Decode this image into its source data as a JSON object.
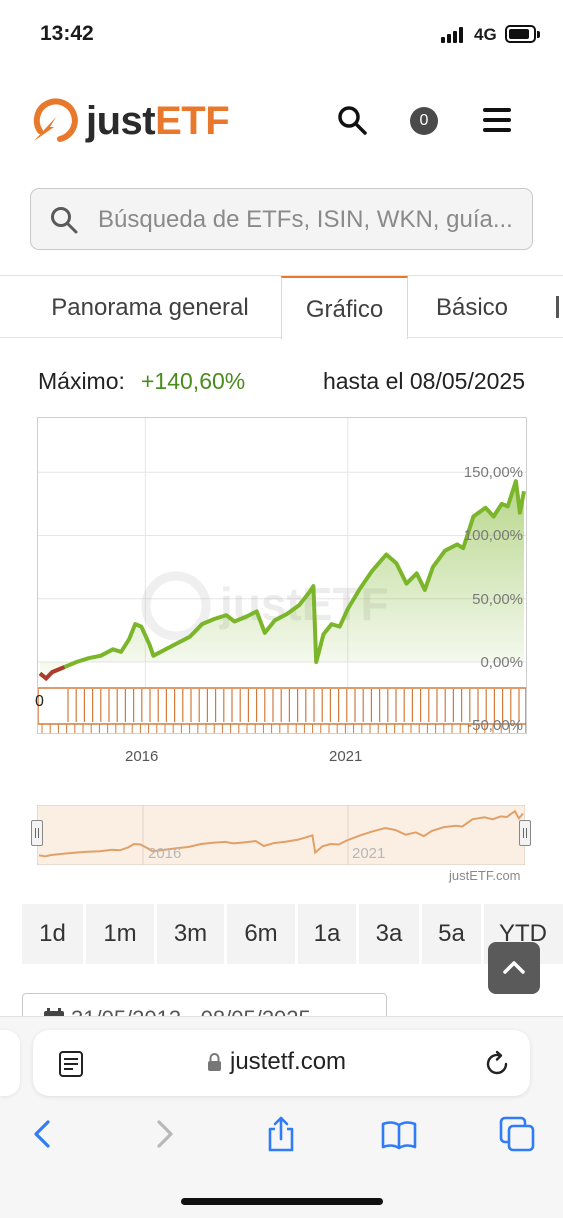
{
  "status_bar": {
    "time": "13:42",
    "network": "4G"
  },
  "header": {
    "logo_just": "just",
    "logo_etf": "ETF",
    "cart_count": "0",
    "brand_color": "#e8782b"
  },
  "search": {
    "placeholder": "Búsqueda de ETFs, ISIN, WKN, guía..."
  },
  "tabs": [
    {
      "label": "Panorama general",
      "active": false
    },
    {
      "label": "Gráfico",
      "active": true
    },
    {
      "label": "Básico",
      "active": false
    }
  ],
  "summary": {
    "max_label": "Máximo:",
    "max_value": "+140,60%",
    "until_label": "hasta el 08/05/2025",
    "positive_color": "#4a8d1f"
  },
  "chart_data": {
    "type": "line",
    "series": [
      {
        "values": [
          [
            2013.4,
            -9
          ],
          [
            2013.55,
            -13
          ],
          [
            2013.7,
            -8
          ],
          [
            2013.85,
            -6
          ],
          [
            2014.0,
            -4
          ],
          [
            2014.3,
            0
          ],
          [
            2014.6,
            3
          ],
          [
            2014.9,
            5
          ],
          [
            2015.2,
            10
          ],
          [
            2015.4,
            8
          ],
          [
            2015.6,
            18
          ],
          [
            2015.75,
            30
          ],
          [
            2015.9,
            28
          ],
          [
            2016.1,
            14
          ],
          [
            2016.2,
            5
          ],
          [
            2016.5,
            10
          ],
          [
            2016.8,
            15
          ],
          [
            2017.1,
            20
          ],
          [
            2017.4,
            30
          ],
          [
            2017.7,
            34
          ],
          [
            2018.0,
            37
          ],
          [
            2018.2,
            32
          ],
          [
            2018.5,
            36
          ],
          [
            2018.75,
            40
          ],
          [
            2018.95,
            23
          ],
          [
            2019.2,
            33
          ],
          [
            2019.5,
            38
          ],
          [
            2019.8,
            45
          ],
          [
            2020.05,
            55
          ],
          [
            2020.15,
            60
          ],
          [
            2020.22,
            0
          ],
          [
            2020.4,
            22
          ],
          [
            2020.6,
            30
          ],
          [
            2020.8,
            28
          ],
          [
            2021.0,
            42
          ],
          [
            2021.3,
            58
          ],
          [
            2021.6,
            72
          ],
          [
            2021.95,
            85
          ],
          [
            2022.2,
            78
          ],
          [
            2022.45,
            62
          ],
          [
            2022.7,
            70
          ],
          [
            2022.9,
            57
          ],
          [
            2023.1,
            75
          ],
          [
            2023.4,
            88
          ],
          [
            2023.7,
            93
          ],
          [
            2023.85,
            90
          ],
          [
            2024.1,
            115
          ],
          [
            2024.4,
            122
          ],
          [
            2024.6,
            115
          ],
          [
            2024.8,
            125
          ],
          [
            2024.95,
            123
          ],
          [
            2025.05,
            133
          ],
          [
            2025.15,
            143
          ],
          [
            2025.25,
            118
          ],
          [
            2025.35,
            135
          ]
        ],
        "color": "#7bb52a"
      }
    ],
    "x_ticks": [
      "2016",
      "2021"
    ],
    "y_ticks": [
      "150,00%",
      "100,00%",
      "50,00%",
      "0,00%",
      "-50,00%"
    ],
    "ylim": [
      -50,
      200
    ],
    "xlim": [
      2013.4,
      2025.35
    ],
    "grid": true,
    "navigator_x_ticks": [
      "2016",
      "2021"
    ]
  },
  "chart_overlay_text": "0",
  "credit": "justETF.com",
  "periods": [
    "1d",
    "1m",
    "3m",
    "6m",
    "1a",
    "3a",
    "5a",
    "YTD"
  ],
  "date_range": {
    "text": "31/05/2013 - 08/05/2025"
  },
  "browser": {
    "url": "justetf.com"
  }
}
